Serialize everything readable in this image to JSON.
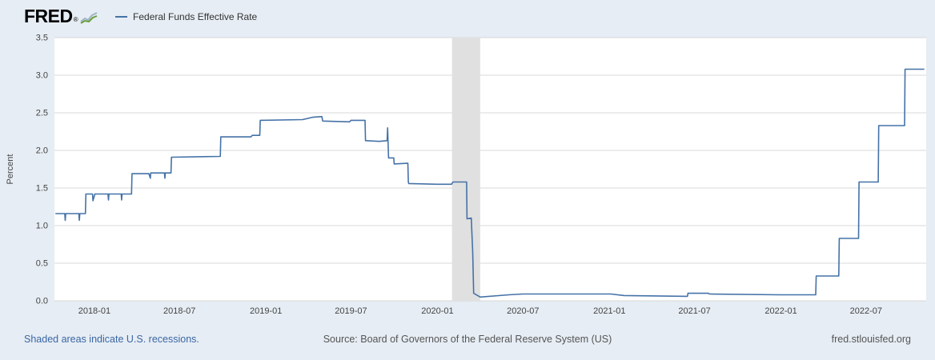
{
  "header": {
    "logo": "FRED",
    "registered": "®",
    "legend": {
      "label": "Federal Funds Effective Rate",
      "color": "#4572a7"
    }
  },
  "footer": {
    "recessions_note": "Shaded areas indicate U.S. recessions.",
    "source": "Source: Board of Governors of the Federal Reserve System (US)",
    "site": "fred.stlouisfed.org"
  },
  "chart_data": {
    "type": "line",
    "title": "Federal Funds Effective Rate",
    "ylabel": "Percent",
    "ylim": [
      0,
      3.5
    ],
    "yticks": [
      0.0,
      0.5,
      1.0,
      1.5,
      2.0,
      2.5,
      3.0,
      3.5
    ],
    "x_domain": [
      "2017-10-08",
      "2022-11-06"
    ],
    "xticks": [
      {
        "date": "2018-01-01",
        "label": "2018-01"
      },
      {
        "date": "2018-07-01",
        "label": "2018-07"
      },
      {
        "date": "2019-01-01",
        "label": "2019-01"
      },
      {
        "date": "2019-07-01",
        "label": "2019-07"
      },
      {
        "date": "2020-01-01",
        "label": "2020-01"
      },
      {
        "date": "2020-07-01",
        "label": "2020-07"
      },
      {
        "date": "2021-01-01",
        "label": "2021-01"
      },
      {
        "date": "2021-07-01",
        "label": "2021-07"
      },
      {
        "date": "2022-01-01",
        "label": "2022-01"
      },
      {
        "date": "2022-07-01",
        "label": "2022-07"
      }
    ],
    "recessions": [
      {
        "start": "2020-02-01",
        "end": "2020-04-01"
      }
    ],
    "line_color": "#4572a7",
    "recession_color": "#e0e0e0",
    "grid_color": "#d8d8d8",
    "legend_position": "top-left",
    "series": [
      {
        "name": "Federal Funds Effective Rate",
        "units": "Percent",
        "points": [
          [
            "2017-10-10",
            1.16
          ],
          [
            "2017-10-30",
            1.16
          ],
          [
            "2017-10-31",
            1.07
          ],
          [
            "2017-11-01",
            1.16
          ],
          [
            "2017-11-29",
            1.16
          ],
          [
            "2017-11-30",
            1.07
          ],
          [
            "2017-12-01",
            1.16
          ],
          [
            "2017-12-13",
            1.16
          ],
          [
            "2017-12-14",
            1.42
          ],
          [
            "2017-12-28",
            1.42
          ],
          [
            "2017-12-29",
            1.33
          ],
          [
            "2018-01-02",
            1.42
          ],
          [
            "2018-01-30",
            1.42
          ],
          [
            "2018-01-31",
            1.34
          ],
          [
            "2018-02-01",
            1.42
          ],
          [
            "2018-02-27",
            1.42
          ],
          [
            "2018-02-28",
            1.34
          ],
          [
            "2018-03-01",
            1.42
          ],
          [
            "2018-03-21",
            1.42
          ],
          [
            "2018-03-22",
            1.69
          ],
          [
            "2018-04-27",
            1.69
          ],
          [
            "2018-04-30",
            1.63
          ],
          [
            "2018-05-01",
            1.7
          ],
          [
            "2018-05-30",
            1.7
          ],
          [
            "2018-05-31",
            1.63
          ],
          [
            "2018-06-01",
            1.7
          ],
          [
            "2018-06-13",
            1.7
          ],
          [
            "2018-06-14",
            1.91
          ],
          [
            "2018-09-26",
            1.92
          ],
          [
            "2018-09-27",
            2.18
          ],
          [
            "2018-11-30",
            2.18
          ],
          [
            "2018-12-03",
            2.2
          ],
          [
            "2018-12-19",
            2.2
          ],
          [
            "2018-12-20",
            2.4
          ],
          [
            "2019-03-20",
            2.41
          ],
          [
            "2019-04-10",
            2.44
          ],
          [
            "2019-04-30",
            2.45
          ],
          [
            "2019-05-02",
            2.39
          ],
          [
            "2019-06-28",
            2.38
          ],
          [
            "2019-07-01",
            2.4
          ],
          [
            "2019-07-31",
            2.4
          ],
          [
            "2019-08-01",
            2.13
          ],
          [
            "2019-08-30",
            2.12
          ],
          [
            "2019-09-16",
            2.13
          ],
          [
            "2019-09-17",
            2.3
          ],
          [
            "2019-09-19",
            1.9
          ],
          [
            "2019-09-30",
            1.9
          ],
          [
            "2019-10-01",
            1.82
          ],
          [
            "2019-10-30",
            1.83
          ],
          [
            "2019-10-31",
            1.58
          ],
          [
            "2019-11-01",
            1.56
          ],
          [
            "2019-12-31",
            1.55
          ],
          [
            "2020-01-31",
            1.55
          ],
          [
            "2020-02-03",
            1.58
          ],
          [
            "2020-03-03",
            1.58
          ],
          [
            "2020-03-04",
            1.09
          ],
          [
            "2020-03-13",
            1.1
          ],
          [
            "2020-03-16",
            0.65
          ],
          [
            "2020-03-18",
            0.1
          ],
          [
            "2020-04-01",
            0.05
          ],
          [
            "2020-06-01",
            0.08
          ],
          [
            "2020-07-01",
            0.09
          ],
          [
            "2020-12-31",
            0.09
          ],
          [
            "2021-01-04",
            0.09
          ],
          [
            "2021-02-01",
            0.07
          ],
          [
            "2021-06-16",
            0.06
          ],
          [
            "2021-06-17",
            0.1
          ],
          [
            "2021-07-30",
            0.1
          ],
          [
            "2021-08-02",
            0.09
          ],
          [
            "2021-12-31",
            0.08
          ],
          [
            "2022-01-03",
            0.08
          ],
          [
            "2022-03-16",
            0.08
          ],
          [
            "2022-03-17",
            0.33
          ],
          [
            "2022-05-04",
            0.33
          ],
          [
            "2022-05-05",
            0.83
          ],
          [
            "2022-06-15",
            0.83
          ],
          [
            "2022-06-16",
            1.58
          ],
          [
            "2022-07-27",
            1.58
          ],
          [
            "2022-07-28",
            2.33
          ],
          [
            "2022-09-21",
            2.33
          ],
          [
            "2022-09-22",
            3.08
          ],
          [
            "2022-11-02",
            3.08
          ]
        ]
      }
    ]
  }
}
